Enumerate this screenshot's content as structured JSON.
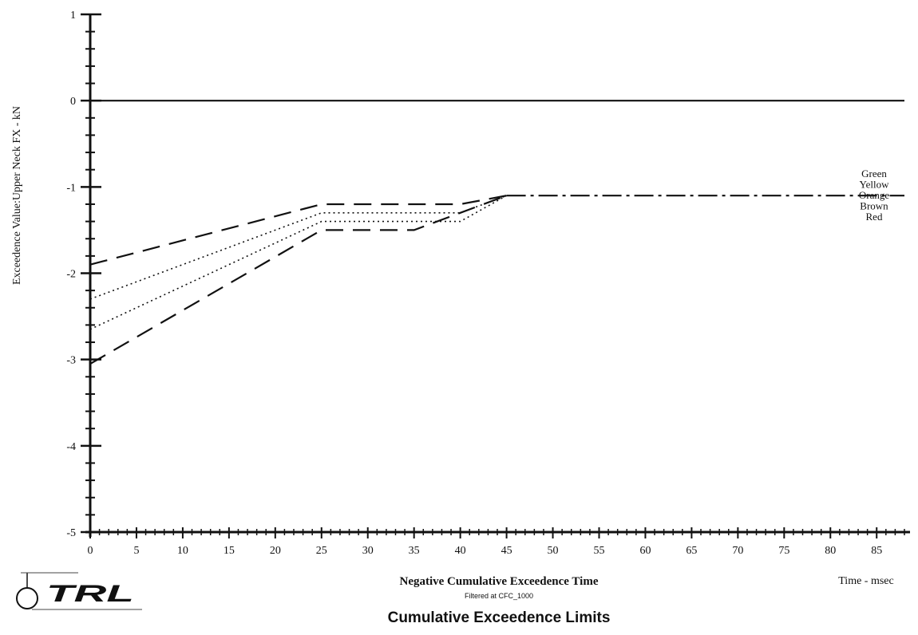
{
  "chart_data": {
    "type": "line",
    "title": "Cumulative Exceedence Limits",
    "subtitle": "Filtered at CFC_1000",
    "xlabel": "Negative Cumulative Exceedence Time",
    "x_unit_label": "Time - msec",
    "ylabel": "Exceedence Value:Upper Neck FX - kN",
    "xlim": [
      0,
      88
    ],
    "ylim": [
      -5,
      1
    ],
    "x_ticks": [
      "0",
      "5",
      "10",
      "15",
      "20",
      "25",
      "30",
      "35",
      "40",
      "45",
      "50",
      "55",
      "60",
      "65",
      "70",
      "75",
      "80",
      "85"
    ],
    "y_ticks": [
      "1",
      "0",
      "-1",
      "-2",
      "-3",
      "-4",
      "-5"
    ],
    "grid": false,
    "legend": [
      "Green",
      "Yellow",
      "Orange",
      "Brown",
      "Red"
    ],
    "series": [
      {
        "name": "Green",
        "style": "solid",
        "x": [
          0,
          88
        ],
        "y": [
          0,
          0
        ]
      },
      {
        "name": "Yellow",
        "style": "long-dash",
        "x": [
          0,
          25,
          40,
          45
        ],
        "y": [
          -1.9,
          -1.2,
          -1.2,
          -1.1
        ]
      },
      {
        "name": "Orange",
        "style": "dotted",
        "x": [
          0,
          25,
          40,
          45
        ],
        "y": [
          -2.3,
          -1.3,
          -1.3,
          -1.1
        ]
      },
      {
        "name": "Brown",
        "style": "dotted",
        "x": [
          0,
          25,
          40,
          45
        ],
        "y": [
          -2.65,
          -1.4,
          -1.4,
          -1.1
        ]
      },
      {
        "name": "Red",
        "style": "long-dash",
        "x": [
          0,
          25,
          35,
          45
        ],
        "y": [
          -3.05,
          -1.5,
          -1.5,
          -1.1
        ]
      },
      {
        "name": "",
        "style": "dash-dot",
        "x": [
          45,
          88
        ],
        "y": [
          -1.1,
          -1.1
        ]
      }
    ]
  },
  "logo": {
    "text": "TRL"
  }
}
